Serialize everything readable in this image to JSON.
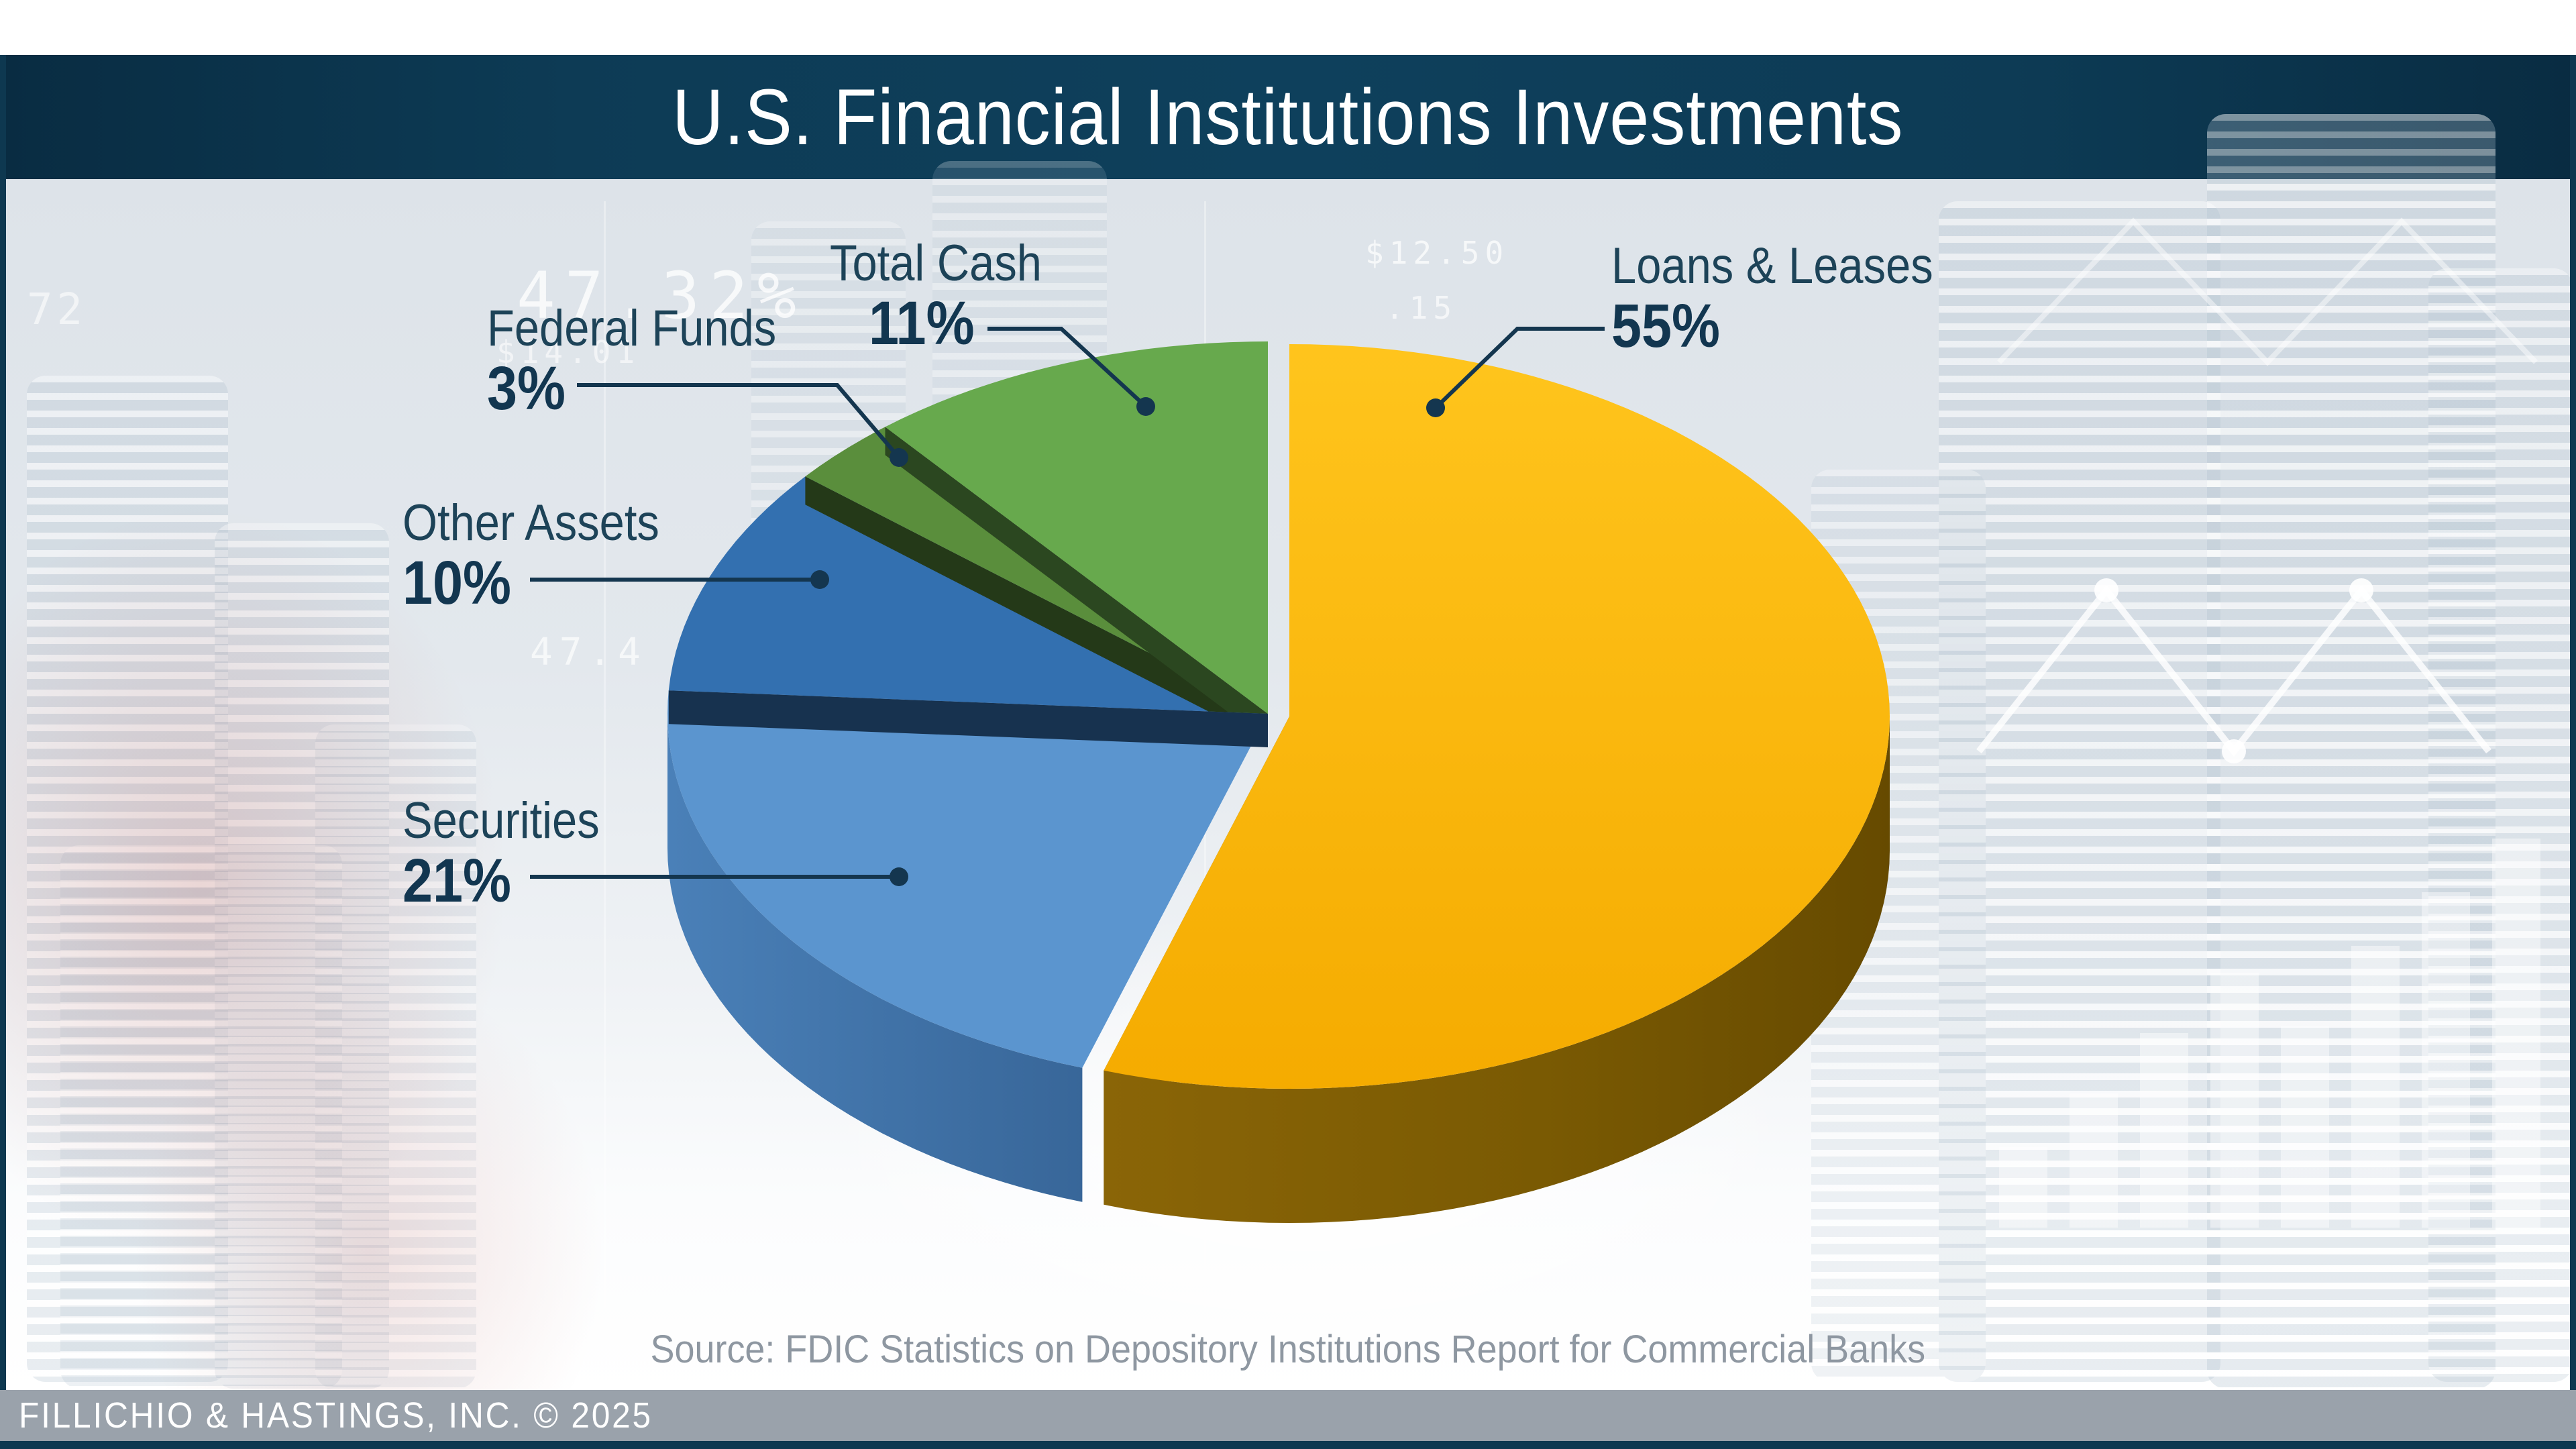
{
  "header": {
    "title": "U.S. Financial Institutions Investments"
  },
  "chart_data": {
    "type": "pie",
    "style": "3d-exploded",
    "title": "U.S. Financial Institutions Investments",
    "start_angle": "12 o'clock, clockwise",
    "exploded_slice": "Loans & Leases",
    "slices": [
      {
        "label": "Loans & Leases",
        "value": 55,
        "pct_label": "55%",
        "color": "#fbb70d"
      },
      {
        "label": "Securities",
        "value": 21,
        "pct_label": "21%",
        "color": "#5b95cf"
      },
      {
        "label": "Other Assets",
        "value": 10,
        "pct_label": "10%",
        "color": "#3370b0"
      },
      {
        "label": "Federal Funds",
        "value": 3,
        "pct_label": "3%",
        "color": "#5a8e3c"
      },
      {
        "label": "Total Cash",
        "value": 11,
        "pct_label": "11%",
        "color": "#67a94d"
      }
    ]
  },
  "source": {
    "text": "Source: FDIC Statistics on Depository Institutions Report for Commercial Banks"
  },
  "footer": {
    "text": "FILLICHIO & HASTINGS, INC. © 2025"
  },
  "background": {
    "watermarks": [
      "47.32%",
      "$14.01",
      "72",
      "$12.50",
      ".15",
      "47.4"
    ]
  },
  "colors": {
    "header_navy": "#0d3b55",
    "label_navy": "#1d4358",
    "value_navy": "#123650",
    "leader_navy": "#14364f",
    "footer_gray": "#9aa2ab",
    "bottom_strip_navy": "#0d3850"
  }
}
